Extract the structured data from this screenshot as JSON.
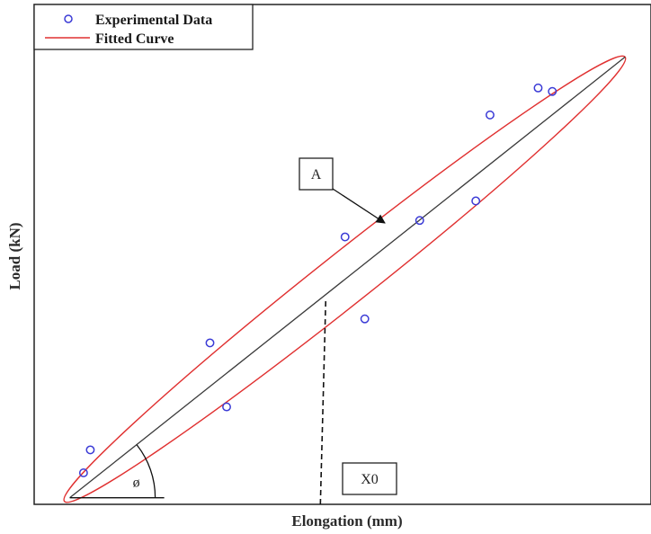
{
  "chart_data": {
    "type": "scatter",
    "title": "",
    "xlabel": "Elongation (mm)",
    "ylabel": "Load (kN)",
    "xlim": [
      0,
      100
    ],
    "ylim": [
      0,
      100
    ],
    "grid": false,
    "legend": {
      "placement": "top-left",
      "entries": [
        "Experimental Data",
        "Fitted Curve"
      ]
    },
    "series": [
      {
        "name": "Experimental Data",
        "kind": "points",
        "color": "#3b3bd6",
        "points": [
          [
            8.0,
            6.3
          ],
          [
            9.1,
            10.9
          ],
          [
            28.5,
            32.3
          ],
          [
            31.2,
            19.5
          ],
          [
            50.4,
            53.5
          ],
          [
            53.6,
            37.1
          ],
          [
            62.5,
            56.8
          ],
          [
            71.6,
            60.7
          ],
          [
            73.9,
            77.9
          ],
          [
            81.7,
            83.3
          ],
          [
            84.0,
            82.6
          ]
        ]
      },
      {
        "name": "Fitted Curve",
        "kind": "ellipse",
        "color": "#e03030",
        "center": [
          50.4,
          45.0
        ],
        "end_a": [
          4.9,
          0.6
        ],
        "end_b": [
          95.8,
          89.5
        ],
        "minor_radius": 4.2
      }
    ],
    "annotations": [
      {
        "label": "A",
        "anchor": [
          58.0,
          55.0
        ]
      },
      {
        "label": "X0",
        "x": 46.4
      },
      {
        "label": "ø"
      }
    ],
    "colors": {
      "axis": "#222222",
      "major_axis_line": "#3a3a3a"
    }
  }
}
